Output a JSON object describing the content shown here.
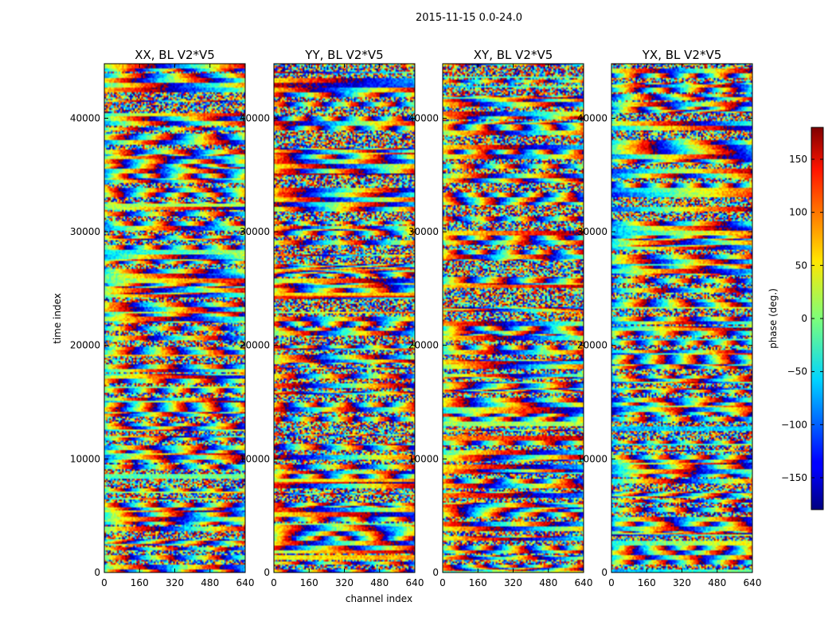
{
  "chart_data": {
    "type": "heatmap",
    "suptitle": "2015-11-15 0.0-24.0",
    "xlabel": "channel index",
    "ylabel": "time index",
    "xlim": [
      0,
      640
    ],
    "ylim": [
      0,
      44800
    ],
    "x_ticks": [
      0,
      160,
      320,
      480,
      640
    ],
    "x_tick_labels": [
      "0",
      "160",
      "320",
      "480",
      "640"
    ],
    "y_ticks": [
      0,
      10000,
      20000,
      30000,
      40000
    ],
    "y_tick_labels": [
      "0",
      "10000",
      "20000",
      "30000",
      "40000"
    ],
    "panels": [
      {
        "title": "XX, BL V2*V5",
        "polarization": "XX"
      },
      {
        "title": "YY, BL V2*V5",
        "polarization": "YY"
      },
      {
        "title": "XY, BL V2*V5",
        "polarization": "XY"
      },
      {
        "title": "YX, BL V2*V5",
        "polarization": "YX"
      }
    ],
    "colorbar": {
      "label": "phase (deg.)",
      "range": [
        -180,
        180
      ],
      "ticks": [
        -150,
        -100,
        -50,
        0,
        50,
        100,
        150
      ],
      "tick_labels": [
        "−150",
        "−100",
        "−50",
        "0",
        "50",
        "100",
        "150"
      ],
      "colormap": "jet"
    }
  }
}
